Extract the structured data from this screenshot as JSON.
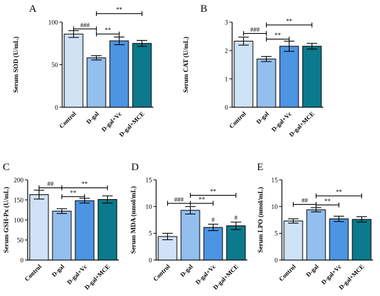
{
  "chart_data": [
    {
      "type": "bar",
      "panel": "A",
      "ylabel": "Serum SOD (U/mL)",
      "yticks": [
        0,
        50,
        100
      ],
      "ylim": [
        0,
        100
      ],
      "categories": [
        "Control",
        "D-gal",
        "D-gal+Vc",
        "D-gal+MCE"
      ],
      "values": [
        86,
        58,
        78,
        75
      ],
      "errors": [
        4,
        2.5,
        4.5,
        3.5
      ],
      "colors": [
        "#cfe2f6",
        "#92bfee",
        "#4d94e3",
        "#0b7a8c"
      ],
      "pointLabels": [
        "",
        "",
        "",
        ""
      ],
      "brackets": [
        {
          "from": 0,
          "to": 1,
          "label": "###",
          "y": 92
        },
        {
          "from": 1,
          "to": 2,
          "label": "**",
          "y": 86
        },
        {
          "from": 1,
          "to": 3,
          "label": "**",
          "y": 110
        }
      ]
    },
    {
      "type": "bar",
      "panel": "B",
      "ylabel": "Serum CAT (U/mL)",
      "yticks": [
        0,
        1,
        2,
        3
      ],
      "ylim": [
        0,
        3
      ],
      "categories": [
        "Control",
        "D-gal",
        "D-gal+Vc",
        "D-gal+MCE"
      ],
      "values": [
        2.33,
        1.7,
        2.15,
        2.15
      ],
      "errors": [
        0.14,
        0.09,
        0.18,
        0.1
      ],
      "colors": [
        "#cfe2f6",
        "#92bfee",
        "#4d94e3",
        "#0b7a8c"
      ],
      "pointLabels": [
        "",
        "",
        "",
        ""
      ],
      "brackets": [
        {
          "from": 0,
          "to": 1,
          "label": "###",
          "y": 2.6
        },
        {
          "from": 1,
          "to": 2,
          "label": "**",
          "y": 2.4
        },
        {
          "from": 1,
          "to": 3,
          "label": "**",
          "y": 2.9
        }
      ]
    },
    {
      "type": "bar",
      "panel": "C",
      "ylabel": "Serum GSH-Px (U/mL)",
      "yticks": [
        0,
        50,
        100,
        150,
        200
      ],
      "ylim": [
        0,
        200
      ],
      "categories": [
        "Control",
        "D-gal",
        "D-gal+Vc",
        "D-gal+MCE"
      ],
      "values": [
        163,
        122,
        148,
        151
      ],
      "errors": [
        11,
        6,
        6,
        9
      ],
      "colors": [
        "#cfe2f6",
        "#92bfee",
        "#4d94e3",
        "#0b7a8c"
      ],
      "pointLabels": [
        "",
        "",
        "",
        ""
      ],
      "brackets": [
        {
          "from": 0,
          "to": 1,
          "label": "##",
          "y": 180
        },
        {
          "from": 1,
          "to": 2,
          "label": "**",
          "y": 158
        },
        {
          "from": 1,
          "to": 3,
          "label": "**",
          "y": 180
        }
      ]
    },
    {
      "type": "bar",
      "panel": "D",
      "ylabel": "Serum MDA (nmol/mL)",
      "yticks": [
        0,
        5,
        10,
        15
      ],
      "ylim": [
        0,
        15
      ],
      "categories": [
        "Control",
        "D-gal",
        "D-gal+Vc",
        "D-gal+MCE"
      ],
      "values": [
        4.4,
        9.3,
        6.1,
        6.4
      ],
      "errors": [
        0.6,
        0.7,
        0.6,
        0.7
      ],
      "colors": [
        "#cfe2f6",
        "#92bfee",
        "#4d94e3",
        "#0b7a8c"
      ],
      "pointLabels": [
        "",
        "",
        "#",
        "#"
      ],
      "brackets": [
        {
          "from": 0,
          "to": 1,
          "label": "###",
          "y": 10.6
        },
        {
          "from": 1,
          "to": 2,
          "label": "**",
          "y": 10.6
        },
        {
          "from": 1,
          "to": 3,
          "label": "**",
          "y": 12.1
        }
      ]
    },
    {
      "type": "bar",
      "panel": "E",
      "ylabel": "Serum LPO (nmol/mL)",
      "yticks": [
        0,
        5,
        10,
        15
      ],
      "ylim": [
        0,
        15
      ],
      "categories": [
        "Control",
        "D-gal",
        "D-gal+Vc",
        "D-gal+MCE"
      ],
      "values": [
        7.3,
        9.4,
        7.7,
        7.6
      ],
      "errors": [
        0.4,
        0.4,
        0.5,
        0.5
      ],
      "colors": [
        "#cfe2f6",
        "#92bfee",
        "#4d94e3",
        "#0b7a8c"
      ],
      "pointLabels": [
        "",
        "",
        "",
        ""
      ],
      "brackets": [
        {
          "from": 0,
          "to": 1,
          "label": "##",
          "y": 10.4
        },
        {
          "from": 1,
          "to": 2,
          "label": "**",
          "y": 10.3
        },
        {
          "from": 1,
          "to": 3,
          "label": "**",
          "y": 12.0
        }
      ]
    }
  ]
}
